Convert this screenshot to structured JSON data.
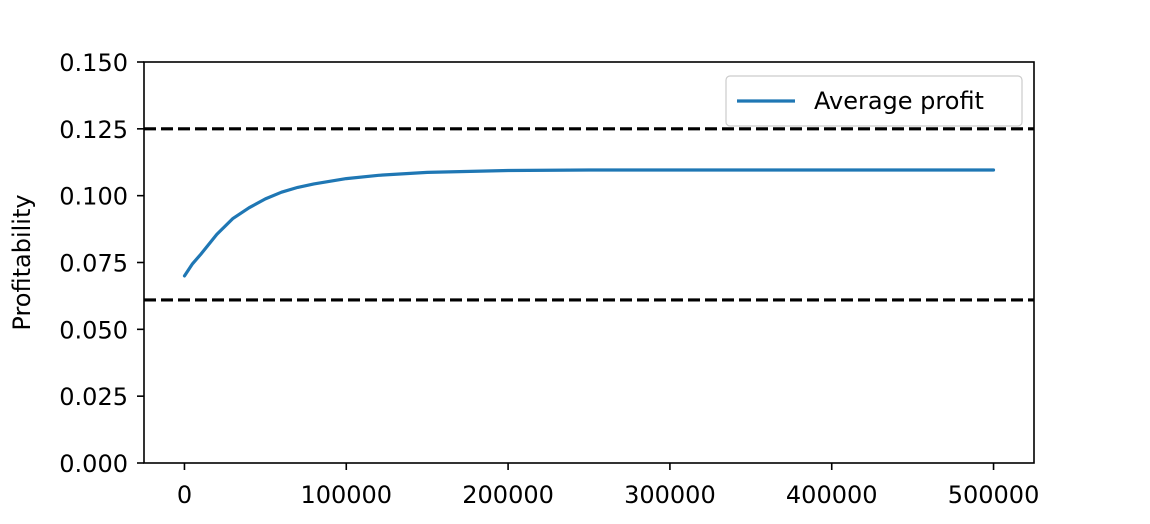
{
  "chart_data": {
    "type": "line",
    "title": "",
    "xlabel": "",
    "ylabel": "Profitability",
    "xlim": [
      -25000,
      525000
    ],
    "ylim": [
      0.0,
      0.15
    ],
    "x_ticks": [
      0,
      100000,
      200000,
      300000,
      400000,
      500000
    ],
    "x_tick_labels": [
      "0",
      "100000",
      "200000",
      "300000",
      "400000",
      "500000"
    ],
    "y_ticks": [
      0.0,
      0.025,
      0.05,
      0.075,
      0.1,
      0.125,
      0.15
    ],
    "y_tick_labels": [
      "0.000",
      "0.025",
      "0.050",
      "0.075",
      "0.100",
      "0.125",
      "0.150"
    ],
    "grid": false,
    "legend": {
      "placement": "upper right",
      "entries": [
        "Average profit"
      ]
    },
    "series": [
      {
        "name": "Average profit",
        "color": "#1f77b4",
        "style": "solid",
        "x": [
          0,
          5000,
          10000,
          20000,
          30000,
          40000,
          50000,
          60000,
          70000,
          80000,
          100000,
          120000,
          150000,
          200000,
          250000,
          300000,
          400000,
          500000
        ],
        "y": [
          0.07,
          0.0745,
          0.078,
          0.0855,
          0.0915,
          0.0955,
          0.0988,
          0.1013,
          0.1031,
          0.1044,
          0.1064,
          0.1076,
          0.1087,
          0.1094,
          0.1096,
          0.1096,
          0.1096,
          0.1096
        ]
      }
    ],
    "reference_lines": [
      {
        "axis": "y",
        "value": 0.125,
        "style": "dashed",
        "color": "#000000"
      },
      {
        "axis": "y",
        "value": 0.061,
        "style": "dashed",
        "color": "#000000"
      }
    ]
  }
}
